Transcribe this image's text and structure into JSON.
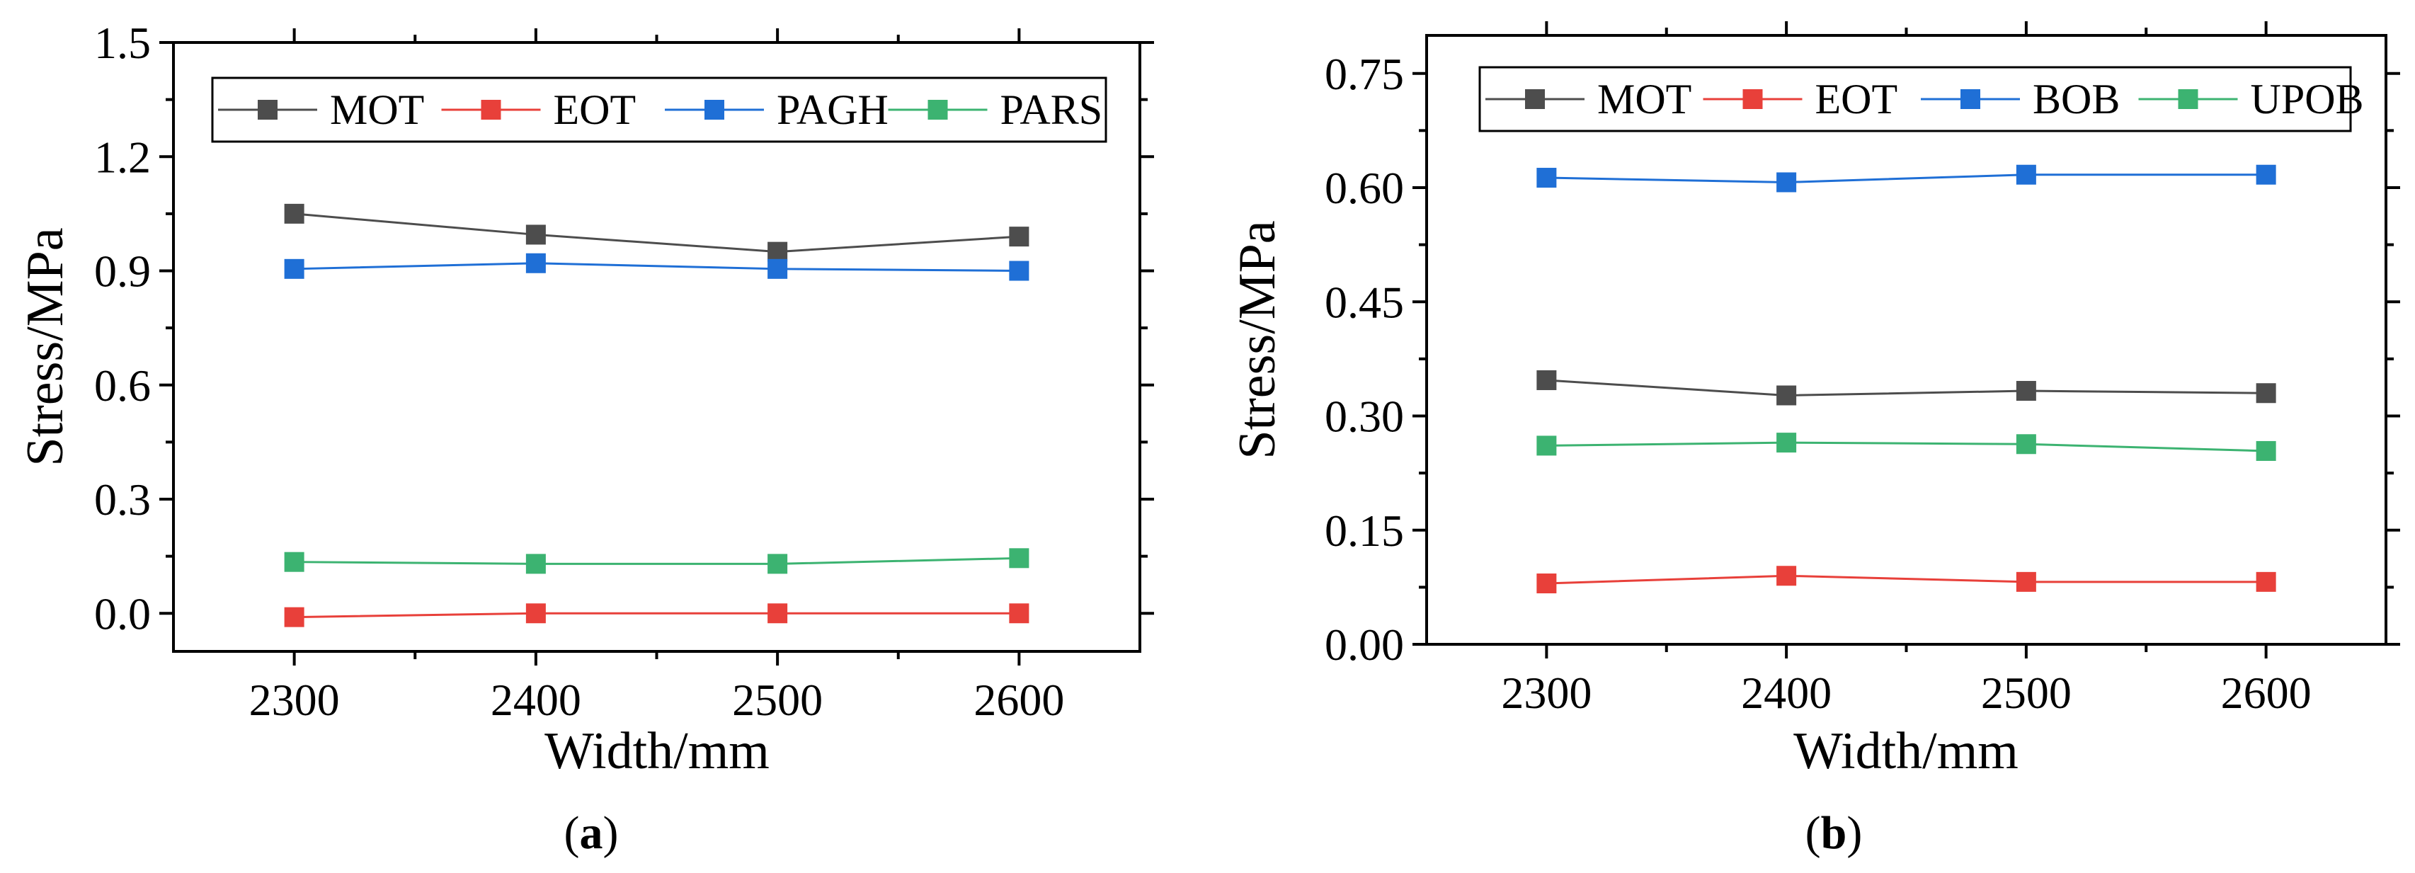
{
  "chart_data": [
    {
      "type": "line",
      "panel_label": "a",
      "xlabel": "Width/mm",
      "ylabel": "Stress/MPa",
      "x": [
        2300,
        2400,
        2500,
        2600
      ],
      "xlim": [
        2250,
        2650
      ],
      "xticks": [
        2300,
        2400,
        2500,
        2600
      ],
      "xtick_labels": [
        "2300",
        "2400",
        "2500",
        "2600"
      ],
      "ylim": [
        -0.1,
        1.5
      ],
      "yticks": [
        0.0,
        0.3,
        0.6,
        0.9,
        1.2,
        1.5
      ],
      "ytick_labels": [
        "0.0",
        "0.3",
        "0.6",
        "0.9",
        "1.2",
        "1.5"
      ],
      "legend_position": "top",
      "series": [
        {
          "name": "MOT",
          "color": "#4d4d4d",
          "values": [
            1.05,
            0.995,
            0.95,
            0.99
          ]
        },
        {
          "name": "EOT",
          "color": "#e8403a",
          "values": [
            -0.01,
            0.0,
            0.0,
            0.0
          ]
        },
        {
          "name": "PAGH",
          "color": "#1f6fd6",
          "values": [
            0.905,
            0.92,
            0.905,
            0.9
          ]
        },
        {
          "name": "PARS",
          "color": "#3cb371",
          "values": [
            0.135,
            0.13,
            0.13,
            0.145
          ]
        }
      ]
    },
    {
      "type": "line",
      "panel_label": "b",
      "xlabel": "Width/mm",
      "ylabel": "Stress/MPa",
      "x": [
        2300,
        2400,
        2500,
        2600
      ],
      "xlim": [
        2250,
        2650
      ],
      "xticks": [
        2300,
        2400,
        2500,
        2600
      ],
      "xtick_labels": [
        "2300",
        "2400",
        "2500",
        "2600"
      ],
      "ylim": [
        0.0,
        0.8
      ],
      "yticks": [
        0.0,
        0.15,
        0.3,
        0.45,
        0.6,
        0.75
      ],
      "ytick_labels": [
        "0.00",
        "0.15",
        "0.30",
        "0.45",
        "0.60",
        "0.75"
      ],
      "legend_position": "top",
      "series": [
        {
          "name": "MOT",
          "color": "#4d4d4d",
          "values": [
            0.347,
            0.327,
            0.333,
            0.33
          ]
        },
        {
          "name": "EOT",
          "color": "#e8403a",
          "values": [
            0.08,
            0.09,
            0.082,
            0.082
          ]
        },
        {
          "name": "BOB",
          "color": "#1f6fd6",
          "values": [
            0.613,
            0.607,
            0.617,
            0.617
          ]
        },
        {
          "name": "UPOB",
          "color": "#3cb371",
          "values": [
            0.261,
            0.265,
            0.263,
            0.254
          ]
        }
      ]
    }
  ]
}
